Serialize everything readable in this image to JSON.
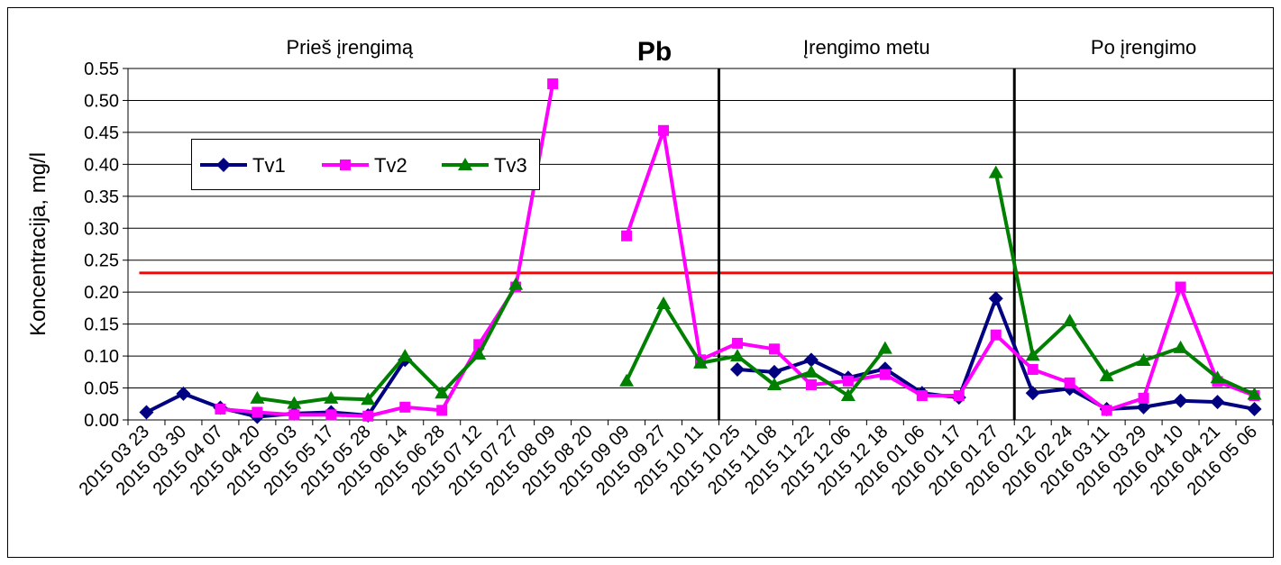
{
  "chart_data": {
    "type": "line",
    "title": "Pb",
    "ylabel": "Koncentracija, mg/l",
    "xlabel": "",
    "ylim": [
      0,
      0.55
    ],
    "ytick_step": 0.05,
    "grid": "horizontal",
    "legend_position": "upper-left",
    "colors": {
      "Tv1": "#000080",
      "Tv2": "#ff00ff",
      "Tv3": "#008000",
      "threshold": "#ff0000",
      "separator": "#000000"
    },
    "categories": [
      "2015 03 23",
      "2015 03 30",
      "2015 04 07",
      "2015 04 20",
      "2015 05 03",
      "2015 05 17",
      "2015 05 28",
      "2015 06 14",
      "2015 06 28",
      "2015 07 12",
      "2015 07 27",
      "2015 08 09",
      "2015 08 20",
      "2015 09 09",
      "2015 09 27",
      "2015 10 11",
      "2015 10 25",
      "2015 11 08",
      "2015 11 22",
      "2015 12 06",
      "2015 12 18",
      "2016 01 06",
      "2016 01 17",
      "2016 01 27",
      "2016 02 12",
      "2016 02 24",
      "2016 03 11",
      "2016 03 29",
      "2016 04 10",
      "2016 04 21",
      "2016 05 06"
    ],
    "series": [
      {
        "name": "Tv1",
        "marker": "diamond",
        "x": [
          "2015 03 23",
          "2015 03 30",
          "2015 04 07",
          "2015 04 20",
          "2015 05 03",
          "2015 05 17",
          "2015 05 28",
          "2015 06 14",
          "2015 10 25",
          "2015 11 08",
          "2015 11 22",
          "2015 12 06",
          "2015 12 18",
          "2016 01 06",
          "2016 01 17",
          "2016 01 27",
          "2016 02 12",
          "2016 02 24",
          "2016 03 11",
          "2016 03 29",
          "2016 04 10",
          "2016 04 21",
          "2016 05 06"
        ],
        "values": [
          0.012,
          0.041,
          0.019,
          0.005,
          0.01,
          0.012,
          0.007,
          0.094,
          0.079,
          0.075,
          0.094,
          0.066,
          0.08,
          0.042,
          0.035,
          0.19,
          0.042,
          0.049,
          0.017,
          0.02,
          0.03,
          0.028,
          0.017
        ]
      },
      {
        "name": "Tv2",
        "marker": "square",
        "x": [
          "2015 04 07",
          "2015 04 20",
          "2015 05 03",
          "2015 05 17",
          "2015 05 28",
          "2015 06 14",
          "2015 06 28",
          "2015 07 12",
          "2015 07 27",
          "2015 08 09",
          "2015 09 09",
          "2015 09 27",
          "2015 10 11",
          "2015 10 25",
          "2015 11 08",
          "2015 11 22",
          "2015 12 06",
          "2015 12 18",
          "2016 01 06",
          "2016 01 17",
          "2016 01 27",
          "2016 02 12",
          "2016 02 24",
          "2016 03 11",
          "2016 03 29",
          "2016 04 10",
          "2016 04 21",
          "2016 05 06"
        ],
        "values": [
          0.017,
          0.012,
          0.008,
          0.008,
          0.006,
          0.02,
          0.015,
          0.118,
          0.208,
          0.526,
          0.288,
          0.453,
          0.094,
          0.12,
          0.111,
          0.055,
          0.061,
          0.071,
          0.038,
          0.038,
          0.133,
          0.079,
          0.058,
          0.015,
          0.034,
          0.208,
          0.06,
          0.038
        ]
      },
      {
        "name": "Tv3",
        "marker": "triangle",
        "x": [
          "2015 04 20",
          "2015 05 03",
          "2015 05 17",
          "2015 05 28",
          "2015 06 14",
          "2015 06 28",
          "2015 07 12",
          "2015 07 27",
          "2015 09 09",
          "2015 09 27",
          "2015 10 11",
          "2015 10 25",
          "2015 11 08",
          "2015 11 22",
          "2015 12 06",
          "2015 12 18",
          "2016 01 27",
          "2016 02 12",
          "2016 02 24",
          "2016 03 11",
          "2016 03 29",
          "2016 04 10",
          "2016 04 21",
          "2016 05 06"
        ],
        "values": [
          0.034,
          0.026,
          0.034,
          0.032,
          0.1,
          0.042,
          0.103,
          0.212,
          0.061,
          0.182,
          0.089,
          0.1,
          0.055,
          0.075,
          0.038,
          0.112,
          0.387,
          0.101,
          0.155,
          0.069,
          0.093,
          0.113,
          0.066,
          0.04
        ]
      }
    ],
    "threshold": {
      "value": 0.23
    },
    "separators": [
      {
        "after_category": "2015 10 11"
      },
      {
        "after_category": "2016 01 27"
      }
    ],
    "period_labels": [
      {
        "text": "Prieš įrengimą",
        "first": "2015 03 23",
        "last": "2015 08 09"
      },
      {
        "text": "Įrengimo metu",
        "first": "2015 10 25",
        "last": "2016 01 27"
      },
      {
        "text": "Po įrengimo",
        "first": "2016 02 12",
        "last": "2016 05 06"
      }
    ]
  }
}
